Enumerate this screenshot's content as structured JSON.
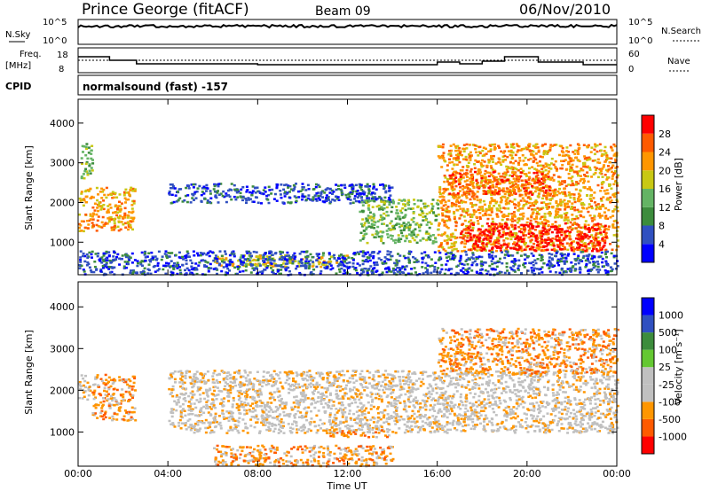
{
  "header": {
    "station": "Prince George (fitACF)",
    "beam": "Beam 09",
    "date": "06/Nov/2010"
  },
  "strips": {
    "nsky": {
      "label": "N.Sky",
      "ticks": [
        "10^5",
        "10^0"
      ]
    },
    "nsearch": {
      "label": "N.Search",
      "ticks": [
        "10^5",
        "10^0"
      ]
    },
    "freq": {
      "label_top": "Freq.",
      "label_bottom": "[MHz]",
      "ticks": [
        "18",
        "8"
      ]
    },
    "nave": {
      "label": "Nave",
      "ticks": [
        "60",
        "0"
      ]
    },
    "cpid": {
      "label": "CPID",
      "value": "normalsound (fast) -157"
    }
  },
  "colors": {
    "power": [
      "#0000ff",
      "#3050c0",
      "#3c8c3c",
      "#64b464",
      "#c8c814",
      "#ff9600",
      "#ff5a00",
      "#ff0000"
    ],
    "velocity": [
      "#ff0000",
      "#ff5a00",
      "#ff9600",
      "#c0c0c0",
      "#c0c0c0",
      "#64c832",
      "#3c8c3c",
      "#3050c0",
      "#0000ff"
    ],
    "ground": "#c0c0c0"
  },
  "chart_data": [
    {
      "type": "heatmap",
      "name": "power",
      "ylabel": "Slant Range [km]",
      "ylim": [
        180,
        4600
      ],
      "yticks": [
        "4000",
        "3000",
        "2000",
        "1000"
      ],
      "colorbar_label": "Power [dB]",
      "colorbar_ticks": [
        "28",
        "24",
        "20",
        "16",
        "12",
        "8",
        "4"
      ],
      "regions": [
        {
          "t": [
            0.0,
            2.5
          ],
          "r": [
            1300,
            2400
          ],
          "level": 5
        },
        {
          "t": [
            0.1,
            0.6
          ],
          "r": [
            2600,
            3500
          ],
          "level": 3
        },
        {
          "t": [
            4.0,
            14.0
          ],
          "r": [
            2000,
            2500
          ],
          "level": 1
        },
        {
          "t": [
            12.5,
            16.0
          ],
          "r": [
            1000,
            2100
          ],
          "level": 3
        },
        {
          "t": [
            16.0,
            24.0
          ],
          "r": [
            800,
            3500
          ],
          "level": 5
        },
        {
          "t": [
            16.5,
            21.0
          ],
          "r": [
            2200,
            2800
          ],
          "level": 6
        },
        {
          "t": [
            17.0,
            23.5
          ],
          "r": [
            800,
            1500
          ],
          "level": 7
        },
        {
          "t": [
            6.0,
            12.0
          ],
          "r": [
            400,
            700
          ],
          "level": 4
        },
        {
          "t": [
            0.0,
            24.0
          ],
          "r": [
            200,
            800
          ],
          "level": 1
        }
      ]
    },
    {
      "type": "heatmap",
      "name": "velocity",
      "xlabel": "Time UT",
      "ylabel": "Slant Range [km]",
      "ylim": [
        180,
        4600
      ],
      "yticks": [
        "4000",
        "3000",
        "2000",
        "1000"
      ],
      "xticks": [
        "00:00",
        "04:00",
        "08:00",
        "12:00",
        "16:00",
        "20:00",
        "00:00"
      ],
      "colorbar_label": "Velocity [m s⁻¹]",
      "colorbar_ticks": [
        "1000",
        "500",
        "100",
        "25",
        "-25",
        "-100",
        "-500",
        "-1000"
      ],
      "regions": [
        {
          "t": [
            0.6,
            2.5
          ],
          "r": [
            1300,
            2400
          ],
          "level": 2
        },
        {
          "t": [
            0.0,
            0.5
          ],
          "r": [
            1800,
            2400
          ],
          "level": 3
        },
        {
          "t": [
            4.0,
            24.0
          ],
          "r": [
            1000,
            2500
          ],
          "level": 3
        },
        {
          "t": [
            16.0,
            24.0
          ],
          "r": [
            2400,
            3500
          ],
          "level": 2
        },
        {
          "t": [
            6.0,
            14.0
          ],
          "r": [
            200,
            700
          ],
          "level": 2
        },
        {
          "t": [
            11.0,
            14.0
          ],
          "r": [
            900,
            1100
          ],
          "level": 2
        }
      ]
    }
  ]
}
